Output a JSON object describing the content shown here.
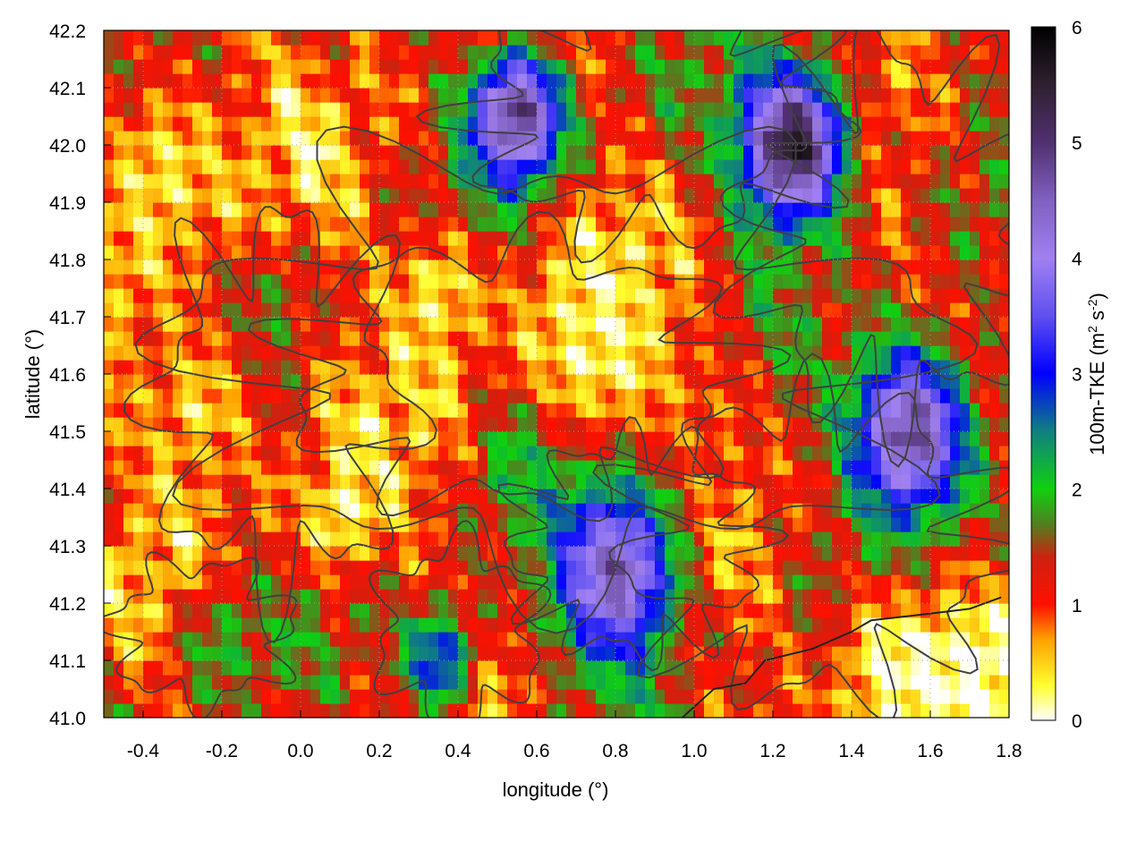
{
  "chart_data": {
    "type": "heatmap",
    "title": "",
    "xlabel": "longitude (°)",
    "ylabel": "latitude (°)",
    "xlim": [
      -0.5,
      1.8
    ],
    "ylim": [
      41.0,
      42.2
    ],
    "x_ticks": [
      "-0.4",
      "-0.2",
      "0.0",
      "0.2",
      "0.4",
      "0.6",
      "0.8",
      "1.0",
      "1.2",
      "1.4",
      "1.6",
      "1.8"
    ],
    "y_ticks": [
      "41.0",
      "41.1",
      "41.2",
      "41.3",
      "41.4",
      "41.5",
      "41.6",
      "41.7",
      "41.8",
      "41.9",
      "42.0",
      "42.1",
      "42.2"
    ],
    "grid": true,
    "colorbar": {
      "label_prefix": "100m-TKE (m",
      "sup1": "2",
      "label_mid": " s",
      "sup2": "-2",
      "label_suffix": ")",
      "range": [
        0,
        6
      ],
      "ticks": [
        "0",
        "1",
        "2",
        "3",
        "4",
        "5",
        "6"
      ],
      "palette": [
        {
          "v": 0.0,
          "c": "#ffffff"
        },
        {
          "v": 0.3,
          "c": "#ffff30"
        },
        {
          "v": 0.7,
          "c": "#ffa000"
        },
        {
          "v": 1.0,
          "c": "#ff1000"
        },
        {
          "v": 1.4,
          "c": "#d02010"
        },
        {
          "v": 1.7,
          "c": "#508020"
        },
        {
          "v": 2.0,
          "c": "#10d010"
        },
        {
          "v": 2.5,
          "c": "#108080"
        },
        {
          "v": 3.0,
          "c": "#0000ff"
        },
        {
          "v": 3.5,
          "c": "#6050f0"
        },
        {
          "v": 4.0,
          "c": "#a080f0"
        },
        {
          "v": 4.5,
          "c": "#8060c0"
        },
        {
          "v": 5.0,
          "c": "#503070"
        },
        {
          "v": 5.5,
          "c": "#302030"
        },
        {
          "v": 6.0,
          "c": "#000000"
        }
      ]
    },
    "field_features": [
      {
        "lon": 0.75,
        "lat": 41.65,
        "r": 0.18,
        "v": 0.25
      },
      {
        "lon": 0.35,
        "lat": 41.75,
        "r": 0.12,
        "v": 0.35
      },
      {
        "lon": -0.35,
        "lat": 41.95,
        "r": 0.18,
        "v": 0.4
      },
      {
        "lon": -0.25,
        "lat": 41.55,
        "r": 0.15,
        "v": 0.45
      },
      {
        "lon": 0.1,
        "lat": 41.35,
        "r": 0.1,
        "v": 0.25
      },
      {
        "lon": 0.55,
        "lat": 42.05,
        "r": 0.12,
        "v": 5.0
      },
      {
        "lon": 1.25,
        "lat": 42.0,
        "r": 0.14,
        "v": 5.6
      },
      {
        "lon": 1.55,
        "lat": 41.5,
        "r": 0.16,
        "v": 4.8
      },
      {
        "lon": 0.8,
        "lat": 41.25,
        "r": 0.16,
        "v": 4.6
      },
      {
        "lon": 0.35,
        "lat": 41.1,
        "r": 0.1,
        "v": 3.0
      },
      {
        "lon": -0.2,
        "lat": 41.12,
        "r": 0.12,
        "v": 1.9
      },
      {
        "lon": -0.1,
        "lat": 41.7,
        "r": 0.1,
        "v": 1.8
      },
      {
        "lon": 1.5,
        "lat": 41.1,
        "r": 0.15,
        "v": 0.1
      },
      {
        "lon": 1.7,
        "lat": 41.05,
        "r": 0.12,
        "v": 0.05
      },
      {
        "lon": 1.05,
        "lat": 41.5,
        "r": 0.14,
        "v": 0.9
      },
      {
        "lon": 0.55,
        "lat": 41.45,
        "r": 0.09,
        "v": 2.2
      }
    ],
    "contour_color": "#404040"
  }
}
